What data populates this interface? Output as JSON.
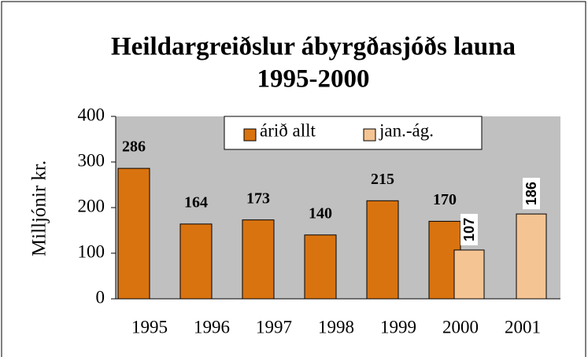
{
  "chart_data": {
    "type": "bar",
    "title": [
      "Heildargreiðslur ábyrgðasjóðs launa",
      "1995-2000"
    ],
    "ylabel": "Milljónir kr.",
    "categories": [
      "1995",
      "1996",
      "1997",
      "1998",
      "1999",
      "2000",
      "2001"
    ],
    "series": [
      {
        "name": "árið allt",
        "color": "#d9730f",
        "values": [
          286,
          164,
          173,
          140,
          215,
          170,
          null
        ]
      },
      {
        "name": "jan.-ág.",
        "color": "#f5c493",
        "values": [
          null,
          null,
          null,
          null,
          null,
          107,
          186
        ]
      }
    ],
    "ylim": [
      0,
      400
    ],
    "yticks": [
      0,
      100,
      200,
      300,
      400
    ],
    "legend": "top"
  }
}
